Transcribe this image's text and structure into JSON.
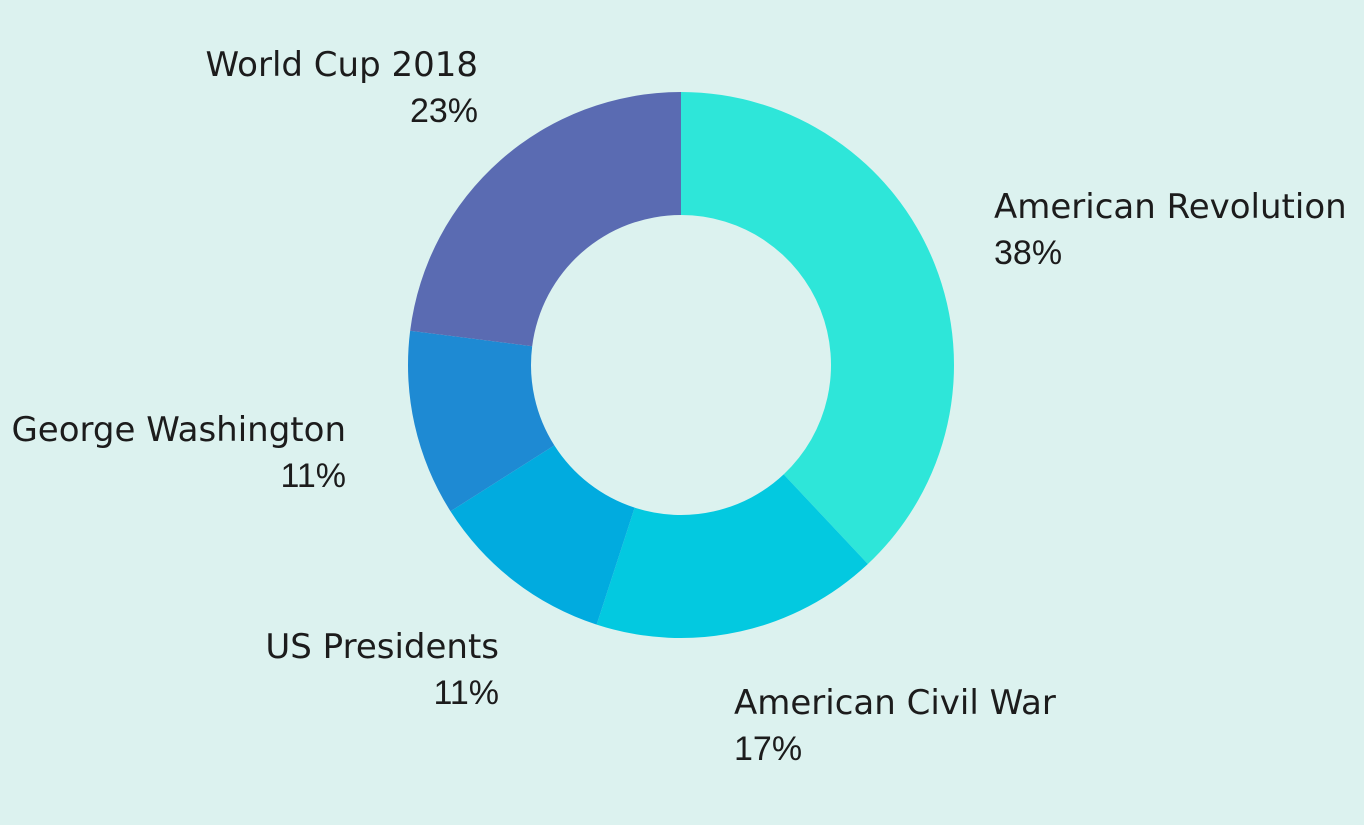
{
  "chart_data": {
    "type": "pie",
    "variant": "donut",
    "title": "",
    "categories": [
      "American Revolution",
      "American Civil War",
      "US Presidents",
      "George Washington",
      "World Cup 2018"
    ],
    "values": [
      38,
      17,
      11,
      11,
      23
    ],
    "value_labels": [
      "38%",
      "17%",
      "11%",
      "11%",
      "23%"
    ],
    "colors": [
      "#2ee6d9",
      "#03c9e0",
      "#01abdf",
      "#1e8ad3",
      "#5a6bb2"
    ],
    "legend": "none",
    "start_direction": "top, clockwise"
  },
  "background_color": "#dcf2ef"
}
